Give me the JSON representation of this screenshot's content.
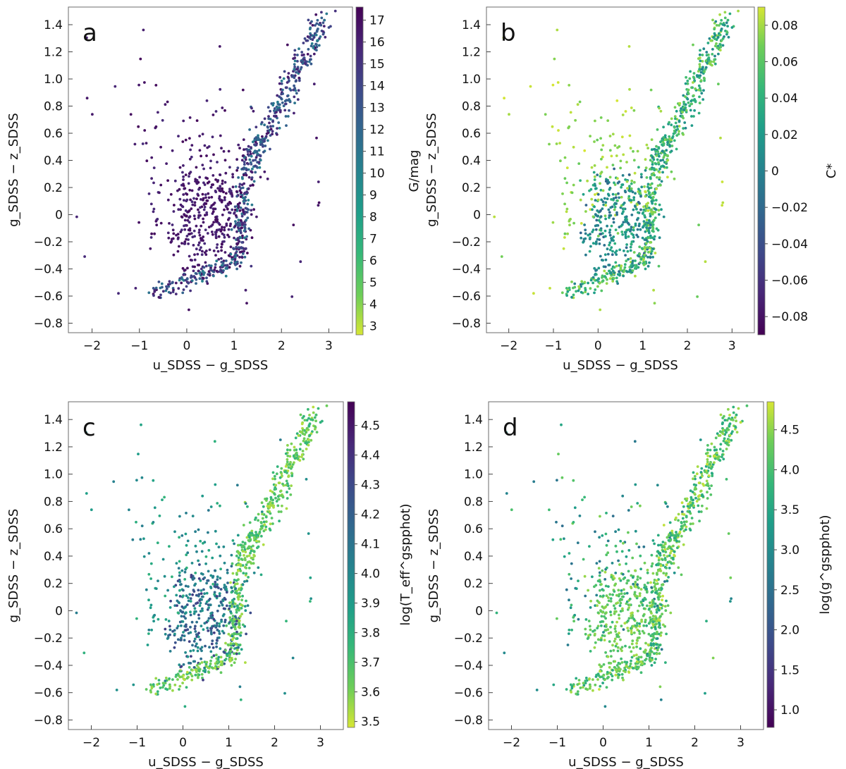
{
  "figure": {
    "description": "four-panel SDSS color-color diagram"
  },
  "chart_data": [
    {
      "type": "scatter",
      "panel_label": "a",
      "xlabel": "u_SDSS − g_SDSS",
      "ylabel": "g_SDSS − z_SDSS",
      "x_ticks": [
        "−2",
        "−1",
        "0",
        "1",
        "2",
        "3"
      ],
      "y_ticks": [
        "−0.8",
        "−0.6",
        "−0.4",
        "−0.2",
        "0",
        "0.2",
        "0.4",
        "0.6",
        "0.8",
        "1.0",
        "1.2",
        "1.4"
      ],
      "xlim": [
        -2.5,
        3.5
      ],
      "ylim": [
        -0.87,
        1.53
      ],
      "colorbar": {
        "label": "G/mag",
        "range": [
          2.6,
          17.6
        ],
        "ticks": [
          "3",
          "4",
          "5",
          "6",
          "7",
          "8",
          "9",
          "10",
          "11",
          "12",
          "13",
          "14",
          "15",
          "16",
          "17"
        ],
        "cmap": "viridis_r"
      },
      "colors": {
        "outline": "#6b6b6b"
      }
    },
    {
      "type": "scatter",
      "panel_label": "b",
      "xlabel": "u_SDSS − g_SDSS",
      "ylabel": "g_SDSS − z_SDSS",
      "x_ticks": [
        "−2",
        "−1",
        "0",
        "1",
        "2",
        "3"
      ],
      "y_ticks": [
        "−0.8",
        "−0.6",
        "−0.4",
        "−0.2",
        "0",
        "0.2",
        "0.4",
        "0.6",
        "0.8",
        "1.0",
        "1.2",
        "1.4"
      ],
      "xlim": [
        -2.5,
        3.5
      ],
      "ylim": [
        -0.87,
        1.53
      ],
      "colorbar": {
        "label": "C*",
        "range": [
          -0.09,
          0.09
        ],
        "ticks": [
          "−0.08",
          "−0.06",
          "−0.04",
          "−0.02",
          "0",
          "0.02",
          "0.04",
          "0.06",
          "0.08"
        ],
        "cmap": "viridis"
      },
      "colors": {
        "outline": "#6b6b6b"
      }
    },
    {
      "type": "scatter",
      "panel_label": "c",
      "xlabel": "u_SDSS − g_SDSS",
      "ylabel": "g_SDSS − z_SDSS",
      "x_ticks": [
        "−2",
        "−1",
        "0",
        "1",
        "2",
        "3"
      ],
      "y_ticks": [
        "−0.8",
        "−0.6",
        "−0.4",
        "−0.2",
        "0",
        "0.2",
        "0.4",
        "0.6",
        "0.8",
        "1.0",
        "1.2",
        "1.4"
      ],
      "xlim": [
        -2.5,
        3.5
      ],
      "ylim": [
        -0.87,
        1.53
      ],
      "colorbar": {
        "label": "log(T_eff^gspphot)",
        "range": [
          3.48,
          4.58
        ],
        "ticks": [
          "3.5",
          "3.6",
          "3.7",
          "3.8",
          "3.9",
          "4.0",
          "4.1",
          "4.2",
          "4.3",
          "4.4",
          "4.5"
        ],
        "cmap": "viridis_r"
      },
      "colors": {
        "outline": "#6b6b6b"
      }
    },
    {
      "type": "scatter",
      "panel_label": "d",
      "xlabel": "u_SDSS − g_SDSS",
      "ylabel": "g_SDSS − z_SDSS",
      "x_ticks": [
        "−2",
        "−1",
        "0",
        "1",
        "2",
        "3"
      ],
      "y_ticks": [
        "−0.8",
        "−0.6",
        "−0.4",
        "−0.2",
        "0",
        "0.2",
        "0.4",
        "0.6",
        "0.8",
        "1.0",
        "1.2",
        "1.4"
      ],
      "xlim": [
        -2.5,
        3.5
      ],
      "ylim": [
        -0.87,
        1.53
      ],
      "colorbar": {
        "label": "log(g^gspphot)",
        "range": [
          0.78,
          4.85
        ],
        "ticks": [
          "1.0",
          "1.5",
          "2.0",
          "2.5",
          "3.0",
          "3.5",
          "4.0",
          "4.5"
        ],
        "cmap": "viridis"
      },
      "colors": {
        "outline": "#6b6b6b"
      }
    }
  ]
}
